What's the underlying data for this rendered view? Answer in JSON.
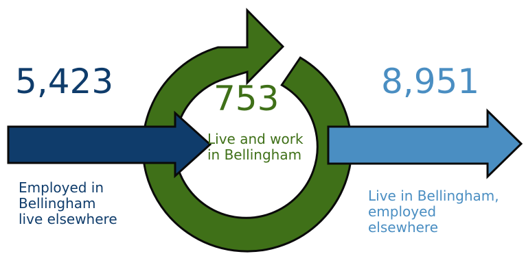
{
  "colors": {
    "inflow": "#0f3c6b",
    "internal": "#3f7018",
    "outflow": "#4a8ec2",
    "outline": "#0a0a0a"
  },
  "inflow": {
    "value": "5,423",
    "label": "Employed in\nBellingham\nlive elsewhere"
  },
  "internal": {
    "value": "753",
    "label": "Live and work\nin Bellingham"
  },
  "outflow": {
    "value": "8,951",
    "label": "Live in Bellingham,\nemployed\nelsewhere"
  }
}
